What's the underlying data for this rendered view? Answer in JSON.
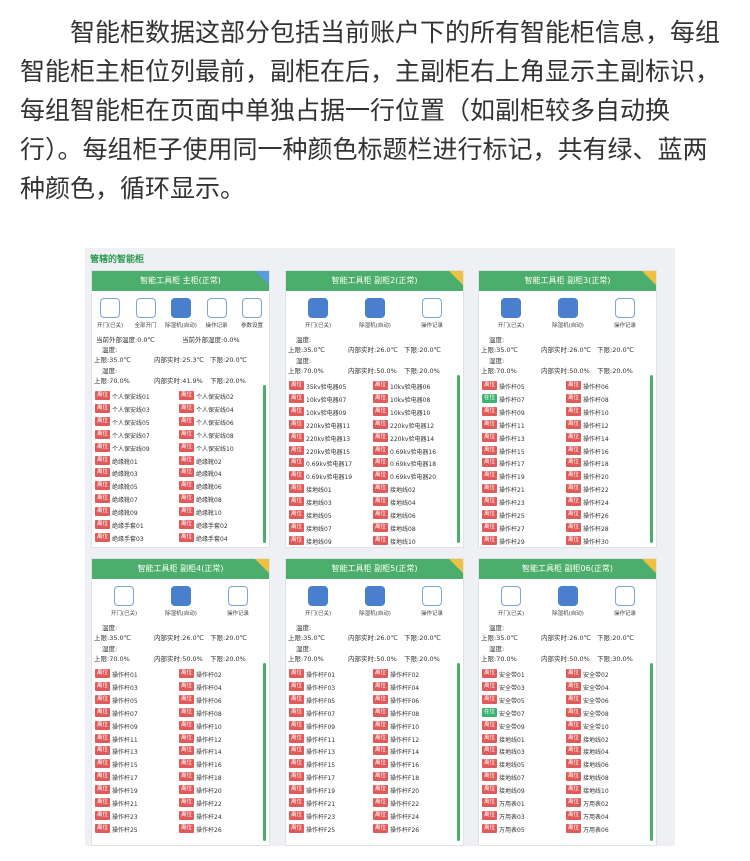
{
  "intro": "智能柜数据这部分包括当前账户下的所有智能柜信息，每组智能柜主柜位列最前，副柜在后，主副柜右上角显示主副标识，每组智能柜在页面中单独占据一行位置（如副柜较多自动换行）。每组柜子使用同一种颜色标题栏进行标记，共有绿、蓝两种颜色，循环显示。",
  "panel": {
    "title": "管辖的智能柜",
    "cabinets": [
      {
        "title": "智能工具柜 主柜(正常)",
        "main": true,
        "buttons": [
          {
            "label": "开门(已关)",
            "active": false
          },
          {
            "label": "全部开门",
            "active": false
          },
          {
            "label": "除湿机(自动)",
            "active": true
          },
          {
            "label": "操作记录",
            "active": false
          },
          {
            "label": "参数设置",
            "active": false
          }
        ],
        "outside": [
          "当前外部温度:0.0℃",
          "当前外部湿度:0.0%"
        ],
        "temp_label": "温度:",
        "temp": [
          "上限:35.0℃",
          "内部实时:25.3℃",
          "下限:20.0℃"
        ],
        "humidity_label": "湿度:",
        "humidity": [
          "上限:70.0%",
          "内部实时:41.9%",
          "下限:20.0%"
        ],
        "items": [
          {
            "status": "离位",
            "name": "个人保安线01"
          },
          {
            "status": "离位",
            "name": "个人保安线02"
          },
          {
            "status": "离位",
            "name": "个人保安线03"
          },
          {
            "status": "离位",
            "name": "个人保安线04"
          },
          {
            "status": "离位",
            "name": "个人保安线05"
          },
          {
            "status": "离位",
            "name": "个人保安线06"
          },
          {
            "status": "离位",
            "name": "个人保安线07"
          },
          {
            "status": "离位",
            "name": "个人保安线08"
          },
          {
            "status": "离位",
            "name": "个人保安线09"
          },
          {
            "status": "离位",
            "name": "个人保安线10"
          },
          {
            "status": "离位",
            "name": "绝缘靴01"
          },
          {
            "status": "离位",
            "name": "绝缘靴02"
          },
          {
            "status": "离位",
            "name": "绝缘靴03"
          },
          {
            "status": "离位",
            "name": "绝缘靴04"
          },
          {
            "status": "离位",
            "name": "绝缘靴05"
          },
          {
            "status": "离位",
            "name": "绝缘靴06"
          },
          {
            "status": "离位",
            "name": "绝缘靴07"
          },
          {
            "status": "离位",
            "name": "绝缘靴08"
          },
          {
            "status": "离位",
            "name": "绝缘靴09"
          },
          {
            "status": "离位",
            "name": "绝缘靴10"
          },
          {
            "status": "离位",
            "name": "绝缘手套01"
          },
          {
            "status": "离位",
            "name": "绝缘手套02"
          },
          {
            "status": "离位",
            "name": "绝缘手套03"
          },
          {
            "status": "离位",
            "name": "绝缘手套04"
          }
        ]
      },
      {
        "title": "智能工具柜 副柜2(正常)",
        "main": false,
        "buttons": [
          {
            "label": "开门(已关)",
            "active": true
          },
          {
            "label": "除湿机(自动)",
            "active": true
          },
          {
            "label": "操作记录",
            "active": false
          }
        ],
        "temp_label": "温度:",
        "temp": [
          "上限:35.0℃",
          "内部实时:26.0℃",
          "下限:20.0℃"
        ],
        "humidity_label": "湿度:",
        "humidity": [
          "上限:70.0%",
          "内部实时:50.0%",
          "下限:20.0%"
        ],
        "items": [
          {
            "status": "离位",
            "name": "35kv验电器05"
          },
          {
            "status": "离位",
            "name": "10kv验电器06"
          },
          {
            "status": "离位",
            "name": "10kv验电器07"
          },
          {
            "status": "离位",
            "name": "10kv验电器08"
          },
          {
            "status": "离位",
            "name": "10kv验电器09"
          },
          {
            "status": "离位",
            "name": "10kv验电器10"
          },
          {
            "status": "离位",
            "name": "220kv验电器11"
          },
          {
            "status": "离位",
            "name": "220kv验电器12"
          },
          {
            "status": "离位",
            "name": "220kv验电器13"
          },
          {
            "status": "离位",
            "name": "220kv验电器14"
          },
          {
            "status": "离位",
            "name": "220kv验电器15"
          },
          {
            "status": "离位",
            "name": "0.69kv验电器16"
          },
          {
            "status": "离位",
            "name": "0.69kv验电器17"
          },
          {
            "status": "离位",
            "name": "0.69kv验电器18"
          },
          {
            "status": "离位",
            "name": "0.69kv验电器19"
          },
          {
            "status": "离位",
            "name": "0.69kv验电器20"
          },
          {
            "status": "离位",
            "name": "接地线01"
          },
          {
            "status": "离位",
            "name": "接地线02"
          },
          {
            "status": "离位",
            "name": "接地线03"
          },
          {
            "status": "离位",
            "name": "接地线04"
          },
          {
            "status": "离位",
            "name": "接地线05"
          },
          {
            "status": "离位",
            "name": "接地线06"
          },
          {
            "status": "离位",
            "name": "接地线07"
          },
          {
            "status": "离位",
            "name": "接地线08"
          },
          {
            "status": "离位",
            "name": "接地线09"
          },
          {
            "status": "离位",
            "name": "接地线10"
          }
        ]
      },
      {
        "title": "智能工具柜 副柜3(正常)",
        "main": false,
        "buttons": [
          {
            "label": "开门(已关)",
            "active": true
          },
          {
            "label": "除湿机(自动)",
            "active": true
          },
          {
            "label": "操作记录",
            "active": false
          }
        ],
        "temp_label": "温度:",
        "temp": [
          "上限:35.0℃",
          "内部实时:26.0℃",
          "下限:20.0℃"
        ],
        "humidity_label": "湿度:",
        "humidity": [
          "上限:70.0%",
          "内部实时:50.0%",
          "下限:20.0%"
        ],
        "items": [
          {
            "status": "离位",
            "name": "操作杆05"
          },
          {
            "status": "离位",
            "name": "操作杆06"
          },
          {
            "status": "在位",
            "name": "操作杆07"
          },
          {
            "status": "离位",
            "name": "操作杆08"
          },
          {
            "status": "离位",
            "name": "操作杆09"
          },
          {
            "status": "离位",
            "name": "操作杆10"
          },
          {
            "status": "离位",
            "name": "操作杆11"
          },
          {
            "status": "离位",
            "name": "操作杆12"
          },
          {
            "status": "离位",
            "name": "操作杆13"
          },
          {
            "status": "离位",
            "name": "操作杆14"
          },
          {
            "status": "离位",
            "name": "操作杆15"
          },
          {
            "status": "离位",
            "name": "操作杆16"
          },
          {
            "status": "离位",
            "name": "操作杆17"
          },
          {
            "status": "离位",
            "name": "操作杆18"
          },
          {
            "status": "离位",
            "name": "操作杆19"
          },
          {
            "status": "离位",
            "name": "操作杆20"
          },
          {
            "status": "离位",
            "name": "操作杆21"
          },
          {
            "status": "离位",
            "name": "操作杆22"
          },
          {
            "status": "离位",
            "name": "操作杆23"
          },
          {
            "status": "离位",
            "name": "操作杆24"
          },
          {
            "status": "离位",
            "name": "操作杆25"
          },
          {
            "status": "离位",
            "name": "操作杆26"
          },
          {
            "status": "离位",
            "name": "操作杆27"
          },
          {
            "status": "离位",
            "name": "操作杆28"
          },
          {
            "status": "离位",
            "name": "操作杆29"
          },
          {
            "status": "离位",
            "name": "操作杆30"
          }
        ]
      },
      {
        "title": "智能工具柜 副柜4(正常)",
        "main": false,
        "buttons": [
          {
            "label": "开门(已关)",
            "active": false
          },
          {
            "label": "除湿机(自动)",
            "active": true
          },
          {
            "label": "操作记录",
            "active": false
          }
        ],
        "temp_label": "温度:",
        "temp": [
          "上限:35.0℃",
          "内部实时:26.0℃",
          "下限:20.0℃"
        ],
        "humidity_label": "湿度:",
        "humidity": [
          "上限:70.0%",
          "内部实时:50.0%",
          "下限:20.0%"
        ],
        "items": [
          {
            "status": "离位",
            "name": "操作杆01"
          },
          {
            "status": "离位",
            "name": "操作杆02"
          },
          {
            "status": "离位",
            "name": "操作杆03"
          },
          {
            "status": "离位",
            "name": "操作杆04"
          },
          {
            "status": "离位",
            "name": "操作杆05"
          },
          {
            "status": "离位",
            "name": "操作杆06"
          },
          {
            "status": "离位",
            "name": "操作杆07"
          },
          {
            "status": "离位",
            "name": "操作杆08"
          },
          {
            "status": "离位",
            "name": "操作杆09"
          },
          {
            "status": "离位",
            "name": "操作杆10"
          },
          {
            "status": "离位",
            "name": "操作杆11"
          },
          {
            "status": "离位",
            "name": "操作杆12"
          },
          {
            "status": "离位",
            "name": "操作杆13"
          },
          {
            "status": "离位",
            "name": "操作杆14"
          },
          {
            "status": "离位",
            "name": "操作杆15"
          },
          {
            "status": "离位",
            "name": "操作杆16"
          },
          {
            "status": "离位",
            "name": "操作杆17"
          },
          {
            "status": "离位",
            "name": "操作杆18"
          },
          {
            "status": "离位",
            "name": "操作杆19"
          },
          {
            "status": "离位",
            "name": "操作杆20"
          },
          {
            "status": "离位",
            "name": "操作杆21"
          },
          {
            "status": "离位",
            "name": "操作杆22"
          },
          {
            "status": "离位",
            "name": "操作杆23"
          },
          {
            "status": "离位",
            "name": "操作杆24"
          },
          {
            "status": "离位",
            "name": "操作杆25"
          },
          {
            "status": "离位",
            "name": "操作杆26"
          }
        ]
      },
      {
        "title": "智能工具柜 副柜5(正常)",
        "main": false,
        "buttons": [
          {
            "label": "开门(已关)",
            "active": true
          },
          {
            "label": "除湿机(自动)",
            "active": true
          },
          {
            "label": "操作记录",
            "active": false
          }
        ],
        "temp_label": "温度:",
        "temp": [
          "上限:35.0℃",
          "内部实时:26.0℃",
          "下限:20.0℃"
        ],
        "humidity_label": "湿度:",
        "humidity": [
          "上限:70.0%",
          "内部实时:50.0%",
          "下限:20.0%"
        ],
        "items": [
          {
            "status": "离位",
            "name": "操作杆F01"
          },
          {
            "status": "离位",
            "name": "操作杆F02"
          },
          {
            "status": "离位",
            "name": "操作杆F03"
          },
          {
            "status": "离位",
            "name": "操作杆F04"
          },
          {
            "status": "离位",
            "name": "操作杆F05"
          },
          {
            "status": "离位",
            "name": "操作杆F06"
          },
          {
            "status": "离位",
            "name": "操作杆F07"
          },
          {
            "status": "离位",
            "name": "操作杆F08"
          },
          {
            "status": "离位",
            "name": "操作杆F09"
          },
          {
            "status": "离位",
            "name": "操作杆F10"
          },
          {
            "status": "离位",
            "name": "操作杆F11"
          },
          {
            "status": "离位",
            "name": "操作杆F12"
          },
          {
            "status": "离位",
            "name": "操作杆F13"
          },
          {
            "status": "离位",
            "name": "操作杆F14"
          },
          {
            "status": "离位",
            "name": "操作杆F15"
          },
          {
            "status": "离位",
            "name": "操作杆F16"
          },
          {
            "status": "离位",
            "name": "操作杆F17"
          },
          {
            "status": "离位",
            "name": "操作杆F18"
          },
          {
            "status": "离位",
            "name": "操作杆F19"
          },
          {
            "status": "离位",
            "name": "操作杆F20"
          },
          {
            "status": "离位",
            "name": "操作杆F21"
          },
          {
            "status": "离位",
            "name": "操作杆F22"
          },
          {
            "status": "离位",
            "name": "操作杆F23"
          },
          {
            "status": "离位",
            "name": "操作杆F24"
          },
          {
            "status": "离位",
            "name": "操作杆F25"
          },
          {
            "status": "离位",
            "name": "操作杆F26"
          }
        ]
      },
      {
        "title": "智能工具柜 副柜06(正常)",
        "main": false,
        "buttons": [
          {
            "label": "开门(已关)",
            "active": false
          },
          {
            "label": "除湿机(自动)",
            "active": true
          },
          {
            "label": "操作记录",
            "active": false
          }
        ],
        "temp_label": "温度:",
        "temp": [
          "上限:35.0℃",
          "内部实时:26.0℃",
          "下限:20.0℃"
        ],
        "humidity_label": "湿度:",
        "humidity": [
          "上限:70.0%",
          "内部实时:50.0%",
          "下限:30.0%"
        ],
        "items": [
          {
            "status": "离位",
            "name": "安全带01"
          },
          {
            "status": "离位",
            "name": "安全带02"
          },
          {
            "status": "离位",
            "name": "安全带03"
          },
          {
            "status": "离位",
            "name": "安全带04"
          },
          {
            "status": "离位",
            "name": "安全带05"
          },
          {
            "status": "离位",
            "name": "安全带06"
          },
          {
            "status": "在位",
            "name": "安全带07"
          },
          {
            "status": "离位",
            "name": "安全带08"
          },
          {
            "status": "离位",
            "name": "安全带09"
          },
          {
            "status": "离位",
            "name": "安全带10"
          },
          {
            "status": "离位",
            "name": "接地线01"
          },
          {
            "status": "离位",
            "name": "接地线02"
          },
          {
            "status": "离位",
            "name": "接地线03"
          },
          {
            "status": "离位",
            "name": "接地线04"
          },
          {
            "status": "离位",
            "name": "接地线05"
          },
          {
            "status": "离位",
            "name": "接地线06"
          },
          {
            "status": "离位",
            "name": "接地线07"
          },
          {
            "status": "离位",
            "name": "接地线08"
          },
          {
            "status": "离位",
            "name": "接地线09"
          },
          {
            "status": "离位",
            "name": "接地线10"
          },
          {
            "status": "离位",
            "name": "万用表01"
          },
          {
            "status": "离位",
            "name": "万用表02"
          },
          {
            "status": "离位",
            "name": "万用表03"
          },
          {
            "status": "离位",
            "name": "万用表04"
          },
          {
            "status": "离位",
            "name": "万用表05"
          },
          {
            "status": "离位",
            "name": "万用表06"
          }
        ]
      }
    ]
  }
}
